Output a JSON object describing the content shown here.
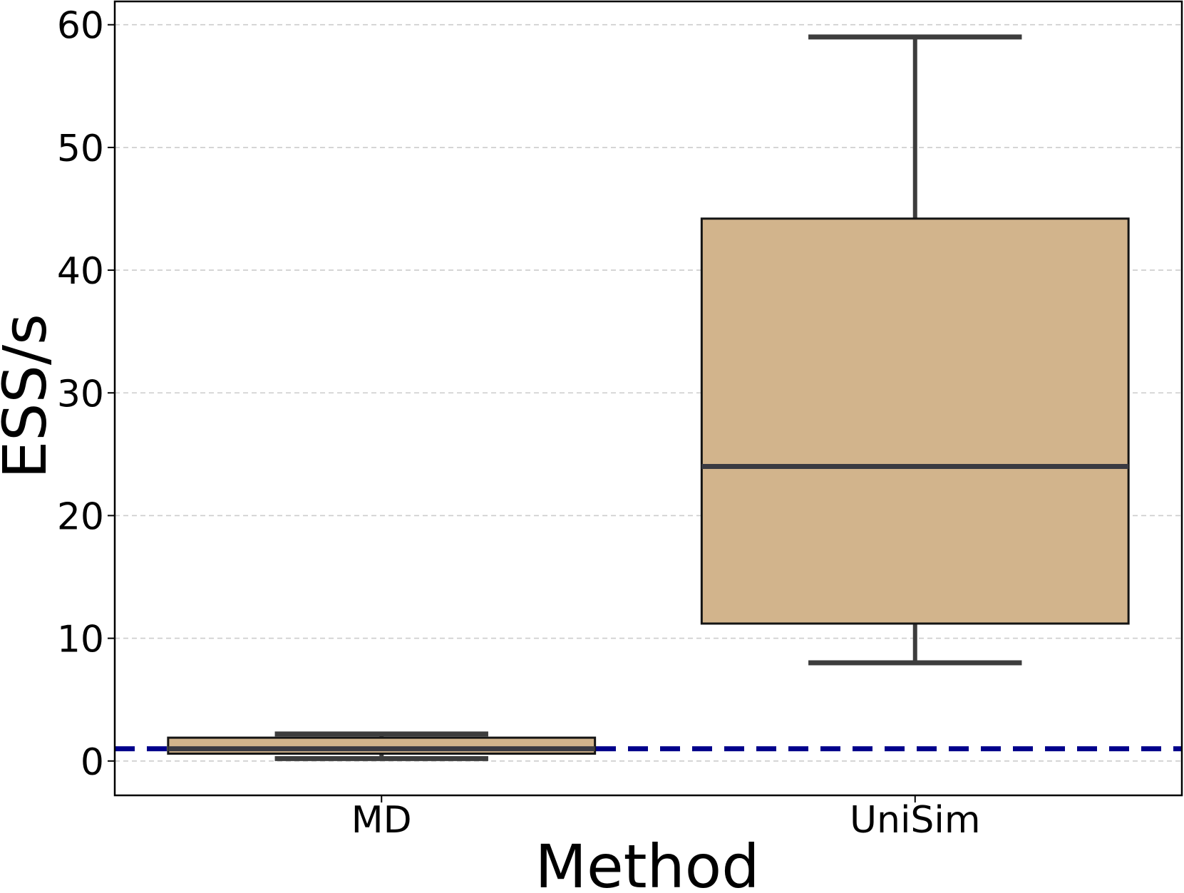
{
  "chart_data": {
    "type": "boxplot",
    "title": "",
    "xlabel": "Method",
    "ylabel": "ESS/s",
    "categories": [
      "MD",
      "UniSim"
    ],
    "y_ticks": [
      0,
      10,
      20,
      30,
      40,
      50,
      60
    ],
    "ylim": [
      -2.8,
      61.9
    ],
    "grid": "horizontal dashed gridlines at every 10",
    "legend": "none",
    "colors": {
      "box_fill": "#d2b48c",
      "box_edge": "#141414",
      "whisker": "#3d3d3d",
      "median": "#3a3a42",
      "gridline": "#cccccc",
      "reference_line": "#00008b",
      "text": "#000000"
    },
    "reference_line": {
      "y": 1,
      "style": "dashed",
      "color": "#00008b"
    },
    "series": [
      {
        "category": "MD",
        "whisker_low": 0.2,
        "q1": 0.6,
        "median": 1.0,
        "q3": 1.9,
        "whisker_high": 2.2
      },
      {
        "category": "UniSim",
        "whisker_low": 8,
        "q1": 11.2,
        "median": 24,
        "q3": 44.2,
        "whisker_high": 59
      }
    ]
  }
}
